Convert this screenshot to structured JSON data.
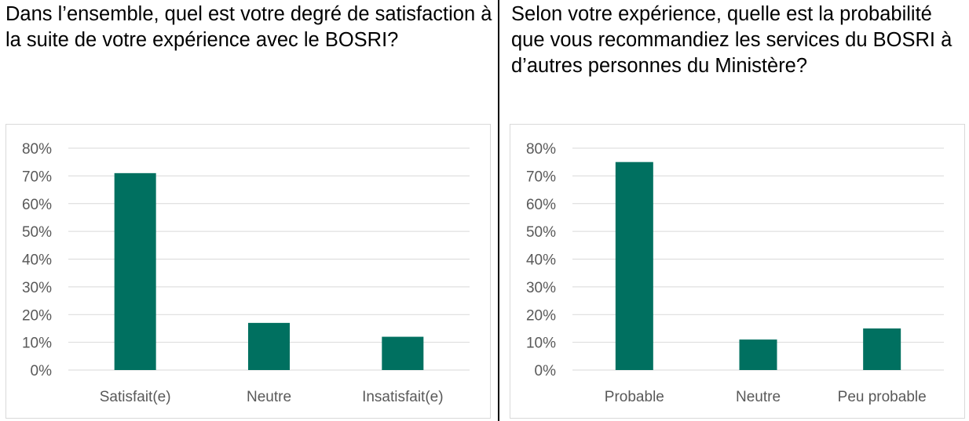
{
  "panels": [
    {
      "question": "Dans l’ensemble, quel est votre degré de satisfaction à la suite de votre expérience avec le BOSRI?"
    },
    {
      "question": "Selon votre expérience, quelle est la probabilité que vous recommandiez les services du BOSRI à d’autres personnes du Ministère?"
    }
  ],
  "colors": {
    "bar": "#007060",
    "grid": "#d9d9d9",
    "text": "#595959"
  },
  "chart_data": [
    {
      "type": "bar",
      "title": "",
      "xlabel": "",
      "ylabel": "",
      "categories": [
        "Satisfait(e)",
        "Neutre",
        "Insatisfait(e)"
      ],
      "values": [
        71,
        17,
        12
      ],
      "ylim": [
        0,
        80
      ],
      "yticks": [
        "0%",
        "10%",
        "20%",
        "30%",
        "40%",
        "50%",
        "60%",
        "70%",
        "80%"
      ],
      "grid": true,
      "legend": "none"
    },
    {
      "type": "bar",
      "title": "",
      "xlabel": "",
      "ylabel": "",
      "categories": [
        "Probable",
        "Neutre",
        "Peu probable"
      ],
      "values": [
        75,
        11,
        15
      ],
      "ylim": [
        0,
        80
      ],
      "yticks": [
        "0%",
        "10%",
        "20%",
        "30%",
        "40%",
        "50%",
        "60%",
        "70%",
        "80%"
      ],
      "grid": true,
      "legend": "none"
    }
  ]
}
